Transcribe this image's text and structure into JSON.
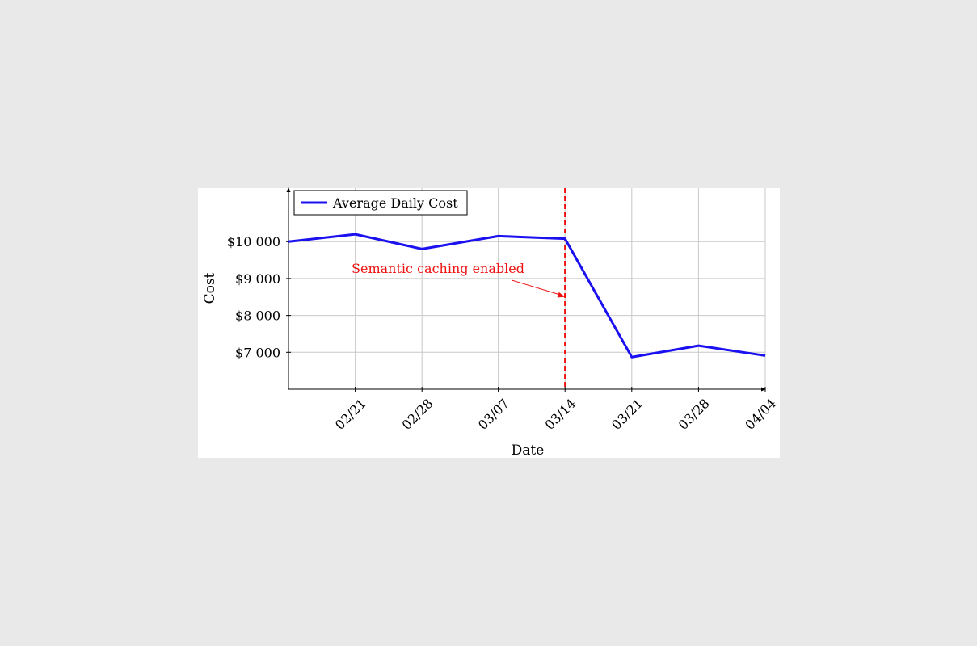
{
  "colors": {
    "background": "#e9e9e9",
    "panel": "#ffffff",
    "series": "#1a10f0",
    "marker_line": "#ee1111",
    "grid": "#c8c8c8",
    "axis": "#000000"
  },
  "chart_data": {
    "type": "line",
    "xlabel": "Date",
    "ylabel": "Cost",
    "x_tick_labels": [
      "02/21",
      "02/28",
      "03/07",
      "03/14",
      "03/21",
      "03/28",
      "04/04"
    ],
    "x_tick_dates": [
      "2024-02-21",
      "2024-02-28",
      "2024-03-07",
      "2024-03-14",
      "2024-03-21",
      "2024-03-28",
      "2024-04-04"
    ],
    "xlim": [
      "2024-02-14",
      "2024-04-04"
    ],
    "y_tick_values": [
      7000,
      8000,
      9000,
      10000
    ],
    "y_tick_labels": [
      "$7 000",
      "$8 000",
      "$9 000",
      "$10 000"
    ],
    "ylim": [
      6000,
      11450
    ],
    "grid": true,
    "legend_position": "top-left",
    "series": [
      {
        "name": "Average Daily Cost",
        "x": [
          "2024-02-14",
          "2024-02-21",
          "2024-02-28",
          "2024-03-07",
          "2024-03-14",
          "2024-03-21",
          "2024-03-28",
          "2024-04-04"
        ],
        "values": [
          10000,
          10200,
          9800,
          10150,
          10080,
          6870,
          7180,
          6910
        ]
      }
    ],
    "annotations": [
      {
        "text": "Semantic caching enabled",
        "x": "2024-03-14",
        "y": 9300,
        "arrow_to_y": 8500,
        "vertical_line_x": "2024-03-14"
      }
    ]
  }
}
